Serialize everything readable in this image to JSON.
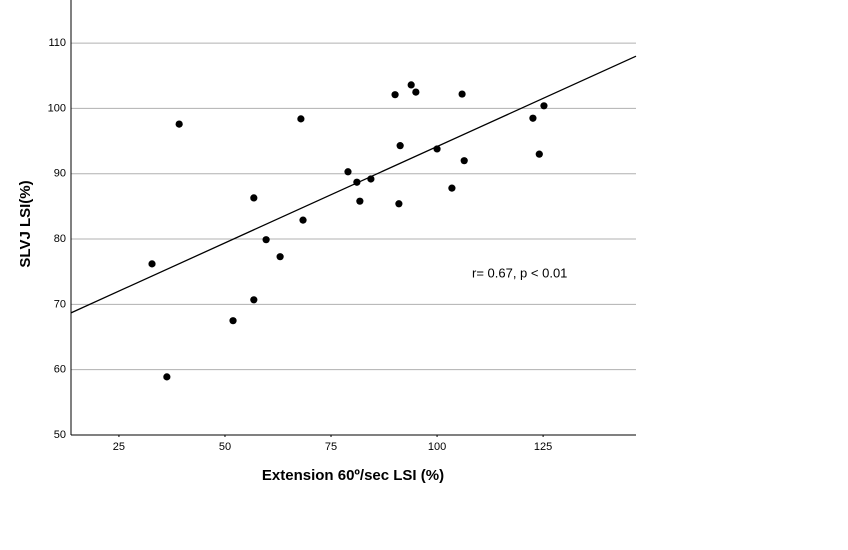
{
  "chart_data": {
    "type": "scatter",
    "x_label": "Extension 60º/sec LSI (%)",
    "y_label": "SLVJ LSI(%)",
    "annotation": "r= 0.67, p < 0.01",
    "x": [
      32.8,
      36.3,
      39.2,
      51.9,
      56.8,
      56.8,
      59.7,
      63.0,
      67.9,
      68.4,
      79.0,
      81.1,
      81.8,
      84.4,
      90.1,
      91.0,
      91.3,
      93.9,
      95.0,
      100.0,
      103.5,
      105.9,
      106.4,
      122.6,
      124.1,
      125.2
    ],
    "y": [
      76.2,
      58.9,
      97.6,
      67.5,
      86.3,
      70.7,
      79.9,
      77.3,
      98.4,
      82.9,
      90.3,
      88.7,
      85.8,
      89.2,
      102.1,
      85.4,
      94.3,
      103.6,
      102.5,
      93.8,
      87.8,
      102.2,
      92.0,
      98.5,
      93.0,
      100.4
    ],
    "color": "#000000",
    "fit_line": {
      "x": [
        13.7,
        146.9
      ],
      "y": [
        68.7,
        108.0
      ]
    },
    "xlim": [
      13.7,
      146.9
    ],
    "xticks": [
      25,
      50,
      75,
      100,
      125
    ],
    "ylim": [
      50,
      116.6
    ],
    "yticks": [
      50,
      60,
      70,
      80,
      90,
      100,
      110
    ],
    "grid": true
  }
}
